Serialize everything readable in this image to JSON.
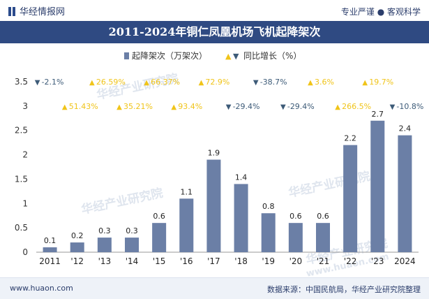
{
  "header": {
    "logo_text": "华经情报网",
    "tagline": "专业严谨 ● 客观科学"
  },
  "title": "2011-2024年铜仁凤凰机场飞机起降架次",
  "footer": {
    "website": "www.huaon.com",
    "source": "数据来源：中国民航局，华经产业研究院整理"
  },
  "watermarks": [
    "华经产业研究院",
    "华经产业研究院",
    "华经产业研究院",
    "华经产业研究院",
    "www.huaon.com"
  ],
  "colors": {
    "bar": "#6b7fa6",
    "up": "#f0c419",
    "down": "#3d5b78",
    "title_bg": "#2f4a82"
  },
  "chart_data": {
    "type": "bar",
    "categories": [
      "2011",
      "'12",
      "'13",
      "'14",
      "'15",
      "'16",
      "'17",
      "'18",
      "'19",
      "'20",
      "'21",
      "'22",
      "'23",
      "2024"
    ],
    "series": [
      {
        "name": "起降架次（万架次）",
        "values": [
          0.1,
          0.2,
          0.3,
          0.3,
          0.6,
          1.1,
          1.9,
          1.4,
          0.8,
          0.6,
          0.6,
          2.2,
          2.7,
          2.4
        ]
      }
    ],
    "growth_name": "同比增长（%）",
    "growth": [
      {
        "label": "-2.1%",
        "dir": "down",
        "row": 0
      },
      {
        "label": "51.43%",
        "dir": "up",
        "row": 1
      },
      {
        "label": "26.59%",
        "dir": "up",
        "row": 0
      },
      {
        "label": "35.21%",
        "dir": "up",
        "row": 1
      },
      {
        "label": "66.37%",
        "dir": "up",
        "row": 0
      },
      {
        "label": "93.4%",
        "dir": "up",
        "row": 1
      },
      {
        "label": "72.9%",
        "dir": "up",
        "row": 0
      },
      {
        "label": "-29.4%",
        "dir": "down",
        "row": 1
      },
      {
        "label": "-38.7%",
        "dir": "down",
        "row": 0
      },
      {
        "label": "-29.4%",
        "dir": "down",
        "row": 1
      },
      {
        "label": "3.6%",
        "dir": "up",
        "row": 0
      },
      {
        "label": "266.5%",
        "dir": "up",
        "row": 1
      },
      {
        "label": "19.7%",
        "dir": "up",
        "row": 0
      },
      {
        "label": "-10.8%",
        "dir": "down",
        "row": 1
      }
    ],
    "yticks": [
      "0",
      "0.5",
      "1",
      "1.5",
      "2",
      "2.5",
      "3",
      "3.5"
    ],
    "ylim": [
      0,
      3.5
    ],
    "legend_position": "top-center"
  }
}
